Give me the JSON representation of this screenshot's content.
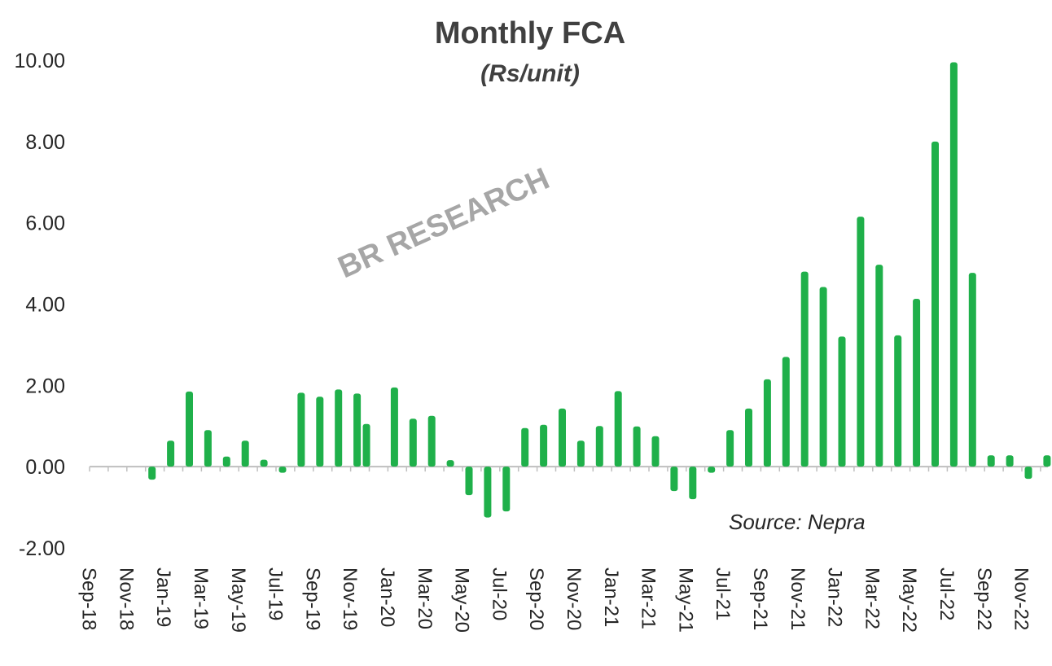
{
  "chart_data": {
    "type": "bar",
    "title": "Monthly FCA",
    "subtitle": "(Rs/unit)",
    "watermark": "BR RESEARCH",
    "source": "Source: Nepra",
    "ylim": [
      -2,
      10
    ],
    "yticks": [
      "-2.00",
      "0.00",
      "2.00",
      "4.00",
      "6.00",
      "8.00",
      "10.00"
    ],
    "ytick_values": [
      -2,
      0,
      2,
      4,
      6,
      8,
      10
    ],
    "xtick_labels": [
      "Sep-18",
      "Nov-18",
      "Jan-19",
      "Mar-19",
      "May-19",
      "Jul-19",
      "Sep-19",
      "Nov-19",
      "Jan-20",
      "Mar-20",
      "May-20",
      "Jul-20",
      "Sep-20",
      "Nov-20",
      "Jan-21",
      "Mar-21",
      "May-21",
      "Jul-21",
      "Sep-21",
      "Nov-21",
      "Jan-22",
      "Mar-22",
      "May-22",
      "Jul-22",
      "Sep-22",
      "Nov-22"
    ],
    "grid": false,
    "bar_color": "#1fb04a",
    "bars": [
      {
        "pos": 0,
        "value": 0
      },
      {
        "pos": 1,
        "value": 0
      },
      {
        "pos": 1.5,
        "value": -0.32
      },
      {
        "pos": 2,
        "value": 0.64
      },
      {
        "pos": 2.5,
        "value": 1.85
      },
      {
        "pos": 3,
        "value": 0.9
      },
      {
        "pos": 3.5,
        "value": 0.25
      },
      {
        "pos": 4,
        "value": 0.64
      },
      {
        "pos": 4.5,
        "value": 0.17
      },
      {
        "pos": 5,
        "value": -0.15
      },
      {
        "pos": 5.5,
        "value": 1.82
      },
      {
        "pos": 6,
        "value": 1.72
      },
      {
        "pos": 6.5,
        "value": 1.9
      },
      {
        "pos": 7,
        "value": 1.8
      },
      {
        "pos": 7.25,
        "value": 1.05
      },
      {
        "pos": 8,
        "value": 1.95
      },
      {
        "pos": 8.5,
        "value": 1.18
      },
      {
        "pos": 9,
        "value": 1.25
      },
      {
        "pos": 9.5,
        "value": 0.16
      },
      {
        "pos": 10,
        "value": -0.7
      },
      {
        "pos": 10.5,
        "value": -1.25
      },
      {
        "pos": 11,
        "value": -1.1
      },
      {
        "pos": 11.5,
        "value": 0.95
      },
      {
        "pos": 12,
        "value": 1.03
      },
      {
        "pos": 12.5,
        "value": 1.43
      },
      {
        "pos": 13,
        "value": 0.64
      },
      {
        "pos": 13.5,
        "value": 1.0
      },
      {
        "pos": 14,
        "value": 1.86
      },
      {
        "pos": 14.5,
        "value": 0.99
      },
      {
        "pos": 15,
        "value": 0.75
      },
      {
        "pos": 15.5,
        "value": -0.6
      },
      {
        "pos": 16,
        "value": -0.8
      },
      {
        "pos": 16.5,
        "value": -0.15
      },
      {
        "pos": 17,
        "value": 0.9
      },
      {
        "pos": 17.5,
        "value": 1.43
      },
      {
        "pos": 18,
        "value": 2.15
      },
      {
        "pos": 18.5,
        "value": 2.7
      },
      {
        "pos": 19,
        "value": 4.8
      },
      {
        "pos": 19.5,
        "value": 4.42
      },
      {
        "pos": 20,
        "value": 3.2
      },
      {
        "pos": 20.5,
        "value": 6.15
      },
      {
        "pos": 21,
        "value": 4.97
      },
      {
        "pos": 21.5,
        "value": 3.23
      },
      {
        "pos": 22,
        "value": 4.13
      },
      {
        "pos": 22.5,
        "value": 8.0
      },
      {
        "pos": 23,
        "value": 9.95
      },
      {
        "pos": 23.5,
        "value": 4.77
      },
      {
        "pos": 24,
        "value": 0.28
      },
      {
        "pos": 24.5,
        "value": 0.28
      },
      {
        "pos": 25,
        "value": -0.3
      },
      {
        "pos": 25.5,
        "value": 0.28
      }
    ]
  }
}
